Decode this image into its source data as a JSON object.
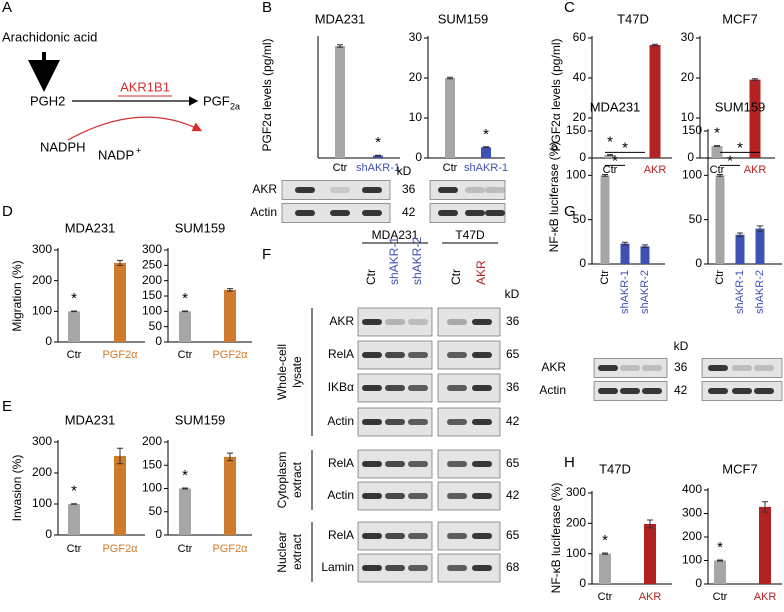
{
  "panel_labels": [
    "A",
    "B",
    "C",
    "D",
    "E",
    "F",
    "G",
    "H"
  ],
  "diagram": {
    "substrate": "Arachidonic acid",
    "intermediate": "PGH2",
    "enzyme": "AKR1B1",
    "product": "PGF",
    "product_sub": "2a",
    "cofactor": "NADPH",
    "cofactor_product": "NADP",
    "cofactor_product_sup": "+"
  },
  "chart_data": [
    {
      "type": "bar",
      "title": "MDA231",
      "ylabel": "PGF2α levels (pg/ml)",
      "categories": [
        "Ctr",
        "shAKR-1"
      ],
      "category_colors": [
        "#000000",
        "#3f51b5"
      ],
      "colors": [
        "#a6a6a6",
        "#3f51b5"
      ],
      "values": [
        56,
        1.2
      ],
      "errors": [
        0.6,
        0.2
      ],
      "stars": [
        null,
        "*"
      ],
      "ylim": [
        0,
        60
      ]
    },
    {
      "type": "bar",
      "title": "SUM159",
      "categories": [
        "Ctr",
        "shAKR-1"
      ],
      "category_colors": [
        "#000000",
        "#3f51b5"
      ],
      "colors": [
        "#a6a6a6",
        "#3f51b5"
      ],
      "values": [
        20,
        2.7
      ],
      "errors": [
        0.2,
        0.1
      ],
      "stars": [
        null,
        "*"
      ],
      "ylim": [
        0,
        30
      ],
      "yticks": [
        0,
        10,
        20,
        30
      ]
    },
    {
      "type": "bar",
      "title": "T47D",
      "ylabel": "PGF2α levels (pg/ml)",
      "categories": [
        "Ctr",
        "AKR"
      ],
      "category_colors": [
        "#000000",
        "#b22222"
      ],
      "colors": [
        "#a6a6a6",
        "#b22222"
      ],
      "values": [
        1.5,
        56.5
      ],
      "errors": [
        0.2,
        0.4
      ],
      "stars": [
        "*",
        null
      ],
      "ylim": [
        0,
        60
      ],
      "yticks": [
        0,
        20,
        40,
        60
      ]
    },
    {
      "type": "bar",
      "title": "MCF7",
      "categories": [
        "Ctr",
        "AKR"
      ],
      "category_colors": [
        "#000000",
        "#b22222"
      ],
      "colors": [
        "#a6a6a6",
        "#b22222"
      ],
      "values": [
        3,
        19.6
      ],
      "errors": [
        0.1,
        0.2
      ],
      "stars": [
        "*",
        null
      ],
      "ylim": [
        0,
        30
      ],
      "yticks": [
        0,
        10,
        20,
        30
      ]
    },
    {
      "type": "bar",
      "title": "MDA231",
      "ylabel": "Migration (%)",
      "categories": [
        "Ctr",
        "PGF2α"
      ],
      "category_colors": [
        "#000000",
        "#d07a2c"
      ],
      "colors": [
        "#a6a6a6",
        "#d07a2c"
      ],
      "values": [
        100,
        258
      ],
      "errors": [
        1,
        8
      ],
      "stars": [
        "*",
        null
      ],
      "ylim": [
        0,
        300
      ],
      "yticks": [
        0,
        100,
        200,
        300
      ]
    },
    {
      "type": "bar",
      "title": "SUM159",
      "categories": [
        "Ctr",
        "PGF2α"
      ],
      "category_colors": [
        "#000000",
        "#d07a2c"
      ],
      "colors": [
        "#a6a6a6",
        "#d07a2c"
      ],
      "values": [
        100,
        170
      ],
      "errors": [
        1,
        4
      ],
      "stars": [
        "*",
        null
      ],
      "ylim": [
        0,
        300
      ],
      "yticks": [
        0,
        50,
        100,
        150,
        200,
        250,
        300
      ]
    },
    {
      "type": "bar",
      "title": "MDA231",
      "ylabel": "Invasion (%)",
      "categories": [
        "Ctr",
        "PGF2α"
      ],
      "category_colors": [
        "#000000",
        "#d07a2c"
      ],
      "colors": [
        "#a6a6a6",
        "#d07a2c"
      ],
      "values": [
        100,
        255
      ],
      "errors": [
        1,
        25
      ],
      "stars": [
        "*",
        null
      ],
      "ylim": [
        0,
        300
      ],
      "yticks": [
        0,
        100,
        200,
        300
      ]
    },
    {
      "type": "bar",
      "title": "SUM159",
      "categories": [
        "Ctr",
        "PGF2α"
      ],
      "category_colors": [
        "#000000",
        "#d07a2c"
      ],
      "colors": [
        "#a6a6a6",
        "#d07a2c"
      ],
      "values": [
        100,
        168
      ],
      "errors": [
        1,
        8
      ],
      "stars": [
        "*",
        null
      ],
      "ylim": [
        0,
        200
      ],
      "yticks": [
        0,
        50,
        100,
        150,
        200
      ]
    },
    {
      "type": "bar",
      "title": "MDA231",
      "ylabel": "NF-κB luciferase (%)",
      "categories": [
        "Ctr",
        "shAKR-1",
        "shAKR-2"
      ],
      "category_colors": [
        "#000000",
        "#3f51b5",
        "#3f51b5"
      ],
      "colors": [
        "#a6a6a6",
        "#3f51b5",
        "#3f51b5"
      ],
      "values": [
        100,
        23,
        20
      ],
      "errors": [
        1,
        1.5,
        1.5
      ],
      "stars": [
        null,
        "*",
        "*"
      ],
      "ylim": [
        0,
        150
      ],
      "yticks": [
        0,
        50,
        100,
        150
      ]
    },
    {
      "type": "bar",
      "title": "SUM159",
      "categories": [
        "Ctr",
        "shAKR-1",
        "shAKR-2"
      ],
      "category_colors": [
        "#000000",
        "#3f51b5",
        "#3f51b5"
      ],
      "colors": [
        "#a6a6a6",
        "#3f51b5",
        "#3f51b5"
      ],
      "values": [
        100,
        33,
        40
      ],
      "errors": [
        1,
        2,
        3
      ],
      "stars": [
        null,
        "*",
        "*"
      ],
      "ylim": [
        0,
        150
      ],
      "yticks": [
        0,
        50,
        100,
        150
      ]
    },
    {
      "type": "bar",
      "title": "T47D",
      "ylabel": "NF-κB luciferase (%)",
      "categories": [
        "Ctr",
        "AKR"
      ],
      "category_colors": [
        "#000000",
        "#b22222"
      ],
      "colors": [
        "#a6a6a6",
        "#b22222"
      ],
      "values": [
        100,
        198
      ],
      "errors": [
        2,
        13
      ],
      "stars": [
        "*",
        null
      ],
      "ylim": [
        0,
        300
      ],
      "yticks": [
        0,
        100,
        200,
        300
      ]
    },
    {
      "type": "bar",
      "title": "MCF7",
      "categories": [
        "Ctr",
        "AKR"
      ],
      "category_colors": [
        "#000000",
        "#b22222"
      ],
      "colors": [
        "#a6a6a6",
        "#b22222"
      ],
      "values": [
        100,
        328
      ],
      "errors": [
        2,
        22
      ],
      "stars": [
        "*",
        null
      ],
      "ylim": [
        0,
        400
      ],
      "yticks": [
        0,
        100,
        200,
        300,
        400
      ]
    }
  ],
  "blot_b": {
    "unit": "kD",
    "rows": [
      {
        "label": "AKR",
        "kD": 36
      },
      {
        "label": "Actin",
        "kD": 42
      }
    ]
  },
  "blot_f": {
    "unit": "kD",
    "groups": [
      {
        "label": "MDA231",
        "lanes": [
          "Ctr",
          "shAKR-1",
          "shAKR-2"
        ],
        "lane_colors": [
          "#000000",
          "#3f51b5",
          "#3f51b5"
        ]
      },
      {
        "label": "T47D",
        "lanes": [
          "Ctr",
          "AKR"
        ],
        "lane_colors": [
          "#000000",
          "#b22222"
        ]
      }
    ],
    "sections": [
      {
        "label": [
          "Whole-cell",
          "lysate"
        ],
        "rows": [
          {
            "label": "AKR",
            "kD": 36
          },
          {
            "label": "RelA",
            "kD": 65
          },
          {
            "label": "IKBα",
            "kD": 36
          },
          {
            "label": "Actin",
            "kD": 42
          }
        ]
      },
      {
        "label": [
          "Cytoplasm",
          "extract"
        ],
        "rows": [
          {
            "label": "RelA",
            "kD": 65
          },
          {
            "label": "Actin",
            "kD": 42
          }
        ]
      },
      {
        "label": [
          "Nuclear",
          "extract"
        ],
        "rows": [
          {
            "label": "RelA",
            "kD": 65
          },
          {
            "label": "Lamin",
            "kD": 68
          }
        ]
      }
    ]
  },
  "blot_g": {
    "unit": "kD",
    "rows": [
      {
        "label": "AKR",
        "kD": 36
      },
      {
        "label": "Actin",
        "kD": 42
      }
    ]
  }
}
